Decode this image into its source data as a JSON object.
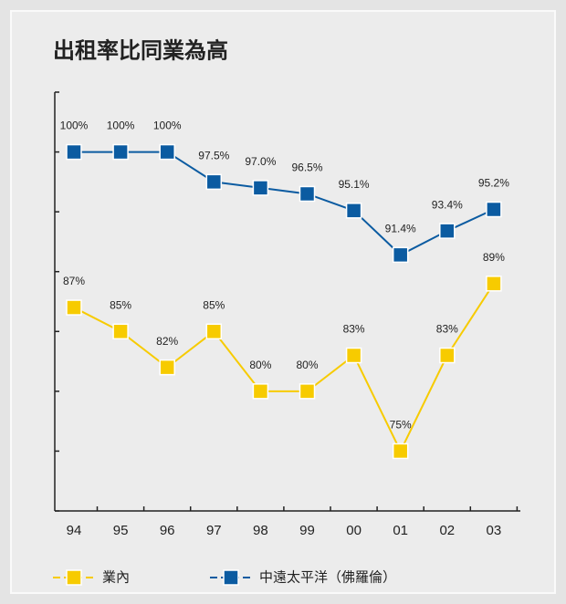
{
  "chart_data": {
    "type": "line",
    "title": "出租率比同業為高",
    "categories": [
      "94",
      "95",
      "96",
      "97",
      "98",
      "99",
      "00",
      "01",
      "02",
      "03"
    ],
    "series": [
      {
        "name": "業內",
        "color": "#f7cb00",
        "values": [
          87,
          85,
          82,
          85,
          80,
          80,
          83,
          75,
          83,
          89
        ],
        "value_labels": [
          "87%",
          "85%",
          "82%",
          "85%",
          "80%",
          "80%",
          "83%",
          "75%",
          "83%",
          "89%"
        ]
      },
      {
        "name": "中遠太平洋（佛羅倫）",
        "color": "#0b5ba1",
        "values": [
          100,
          100,
          100,
          97.5,
          97.0,
          96.5,
          95.1,
          91.4,
          93.4,
          95.2
        ],
        "value_labels": [
          "100%",
          "100%",
          "100%",
          "97.5%",
          "97.0%",
          "96.5%",
          "95.1%",
          "91.4%",
          "93.4%",
          "95.2%"
        ]
      }
    ],
    "ylim": [
      70,
      105
    ],
    "yticks": [
      70,
      75,
      80,
      85,
      90,
      95,
      100,
      105
    ]
  }
}
